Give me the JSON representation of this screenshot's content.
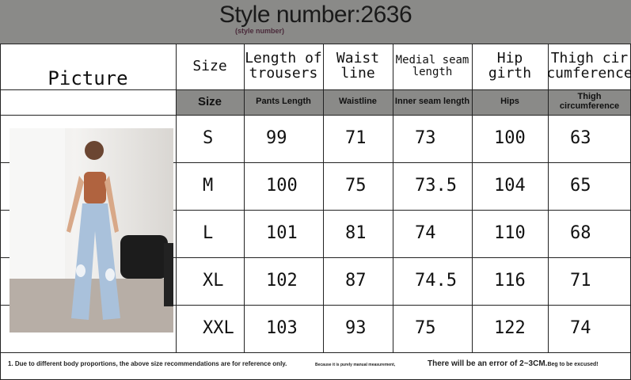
{
  "title": "Style number:2636",
  "subtitle": "(style number)",
  "headers": [
    "Picture",
    "Size",
    "Length of trousers",
    "Waist line",
    "Medial seam length",
    "Hip girth",
    "Thigh cir cumference"
  ],
  "headers_alt": [
    "Size",
    "Pants Length",
    "Waistline",
    "Inner seam length",
    "Hips",
    "Thigh circumference"
  ],
  "rows": [
    [
      "S",
      "99",
      "71",
      "73",
      "100",
      "63"
    ],
    [
      "M",
      "100",
      "75",
      "73.5",
      "104",
      "65"
    ],
    [
      "L",
      "101",
      "81",
      "74",
      "110",
      "68"
    ],
    [
      "XL",
      "102",
      "87",
      "74.5",
      "116",
      "71"
    ],
    [
      "XXL",
      "103",
      "93",
      "75",
      "122",
      "74"
    ]
  ],
  "footer": {
    "note1": "1. Due to different body proportions, the above size recommendations are for reference only.",
    "note2": "Because it is purely manual measurement,",
    "note3": "There will be an error of 2~3CM.",
    "note4": "Beg to be excused!"
  },
  "photo": "model-wearing-light-blue-ripped-wide-leg-jeans"
}
